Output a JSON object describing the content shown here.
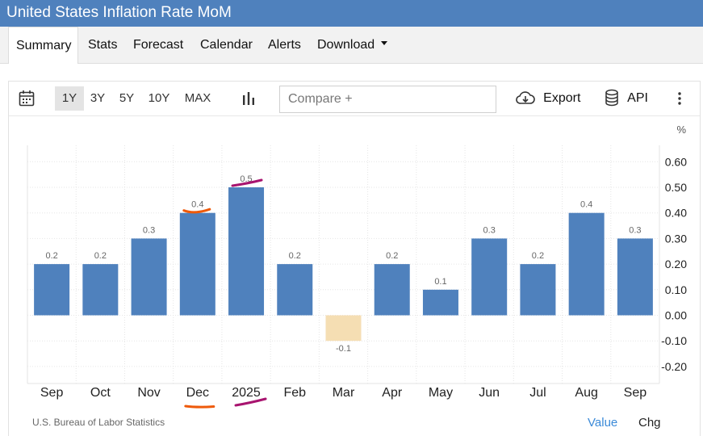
{
  "header": {
    "title": "United States Inflation Rate MoM"
  },
  "nav": {
    "tabs": [
      {
        "label": "Summary",
        "active": true
      },
      {
        "label": "Stats"
      },
      {
        "label": "Forecast"
      },
      {
        "label": "Calendar"
      },
      {
        "label": "Alerts"
      },
      {
        "label": "Download",
        "has_dropdown": true
      }
    ]
  },
  "toolbar": {
    "calendar_icon": "calendar-icon",
    "ranges": [
      "1Y",
      "3Y",
      "5Y",
      "10Y",
      "MAX"
    ],
    "selected_range": "1Y",
    "chart_type_icon": "bar-chart-icon",
    "compare_placeholder": "Compare +",
    "export_label": "Export",
    "export_icon": "cloud-download-icon",
    "api_label": "API",
    "api_icon": "database-icon",
    "more_icon": "more-vertical-icon"
  },
  "footer": {
    "source": "U.S. Bureau of Labor Statistics",
    "value_link": "Value",
    "chg_link": "Chg"
  },
  "colors": {
    "header_bg": "#4f81bd",
    "bar_positive": "#4f81bd",
    "bar_negative": "#f5deb3",
    "link": "#3b8ad8",
    "annotation_orange": "#ee5a0b",
    "annotation_magenta": "#a8146f"
  },
  "chart_data": {
    "type": "bar",
    "unit": "%",
    "categories": [
      "Sep",
      "Oct",
      "Nov",
      "Dec",
      "2025",
      "Feb",
      "Mar",
      "Apr",
      "May",
      "Jun",
      "Jul",
      "Aug",
      "Sep"
    ],
    "values": [
      0.2,
      0.2,
      0.3,
      0.4,
      0.5,
      0.2,
      -0.1,
      0.2,
      0.1,
      0.3,
      0.2,
      0.4,
      0.3
    ],
    "data_labels": [
      "0.2",
      "0.2",
      "0.3",
      "0.4",
      "0.5",
      "0.2",
      "-0.1",
      "0.2",
      "0.1",
      "0.3",
      "0.2",
      "0.4",
      "0.3"
    ],
    "ylim": [
      -0.25,
      0.65
    ],
    "yticks": [
      0.6,
      0.5,
      0.4,
      0.3,
      0.2,
      0.1,
      0.0,
      -0.1,
      -0.2
    ],
    "ytick_labels": [
      "0.60",
      "0.50",
      "0.40",
      "0.30",
      "0.20",
      "0.10",
      "0.00",
      "-0.10",
      "-0.20"
    ],
    "grid": true,
    "y_axis_side": "right",
    "annotations": [
      {
        "type": "underline",
        "target": "data_label",
        "category": "Dec",
        "color": "#ee5a0b"
      },
      {
        "type": "underline",
        "target": "x_tick",
        "category": "Dec",
        "color": "#ee5a0b"
      },
      {
        "type": "underline",
        "target": "data_label",
        "category": "2025",
        "color": "#a8146f"
      },
      {
        "type": "underline",
        "target": "x_tick",
        "category": "2025",
        "color": "#a8146f"
      }
    ]
  }
}
